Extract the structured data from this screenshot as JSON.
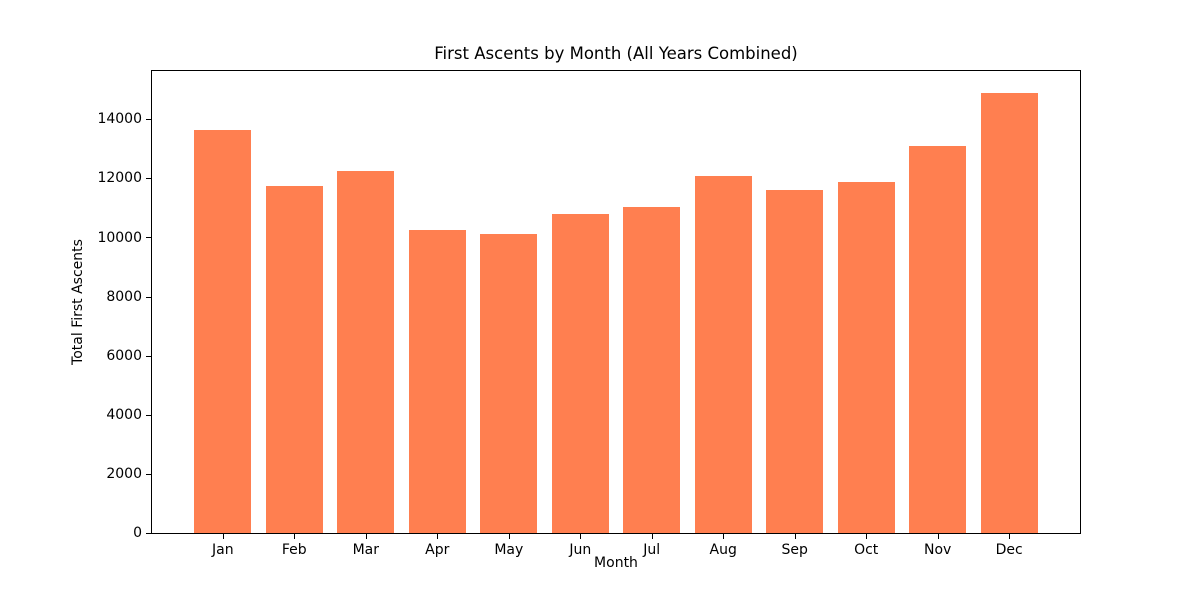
{
  "chart_data": {
    "type": "bar",
    "title": "First Ascents by Month (All Years Combined)",
    "xlabel": "Month",
    "ylabel": "Total First Ascents",
    "categories": [
      "Jan",
      "Feb",
      "Mar",
      "Apr",
      "May",
      "Jun",
      "Jul",
      "Aug",
      "Sep",
      "Oct",
      "Nov",
      "Dec"
    ],
    "values": [
      13630,
      11760,
      12260,
      10260,
      10110,
      10790,
      11030,
      12080,
      11620,
      11870,
      13110,
      14890
    ],
    "yticks": [
      0,
      2000,
      4000,
      6000,
      8000,
      10000,
      12000,
      14000
    ],
    "ylim": [
      0,
      15634
    ],
    "bar_color": "#FF7F50",
    "spine_color": "#000000",
    "background_color": "#FFFFFF",
    "grid": false,
    "legend": null,
    "bar_width_fraction": 0.8
  }
}
